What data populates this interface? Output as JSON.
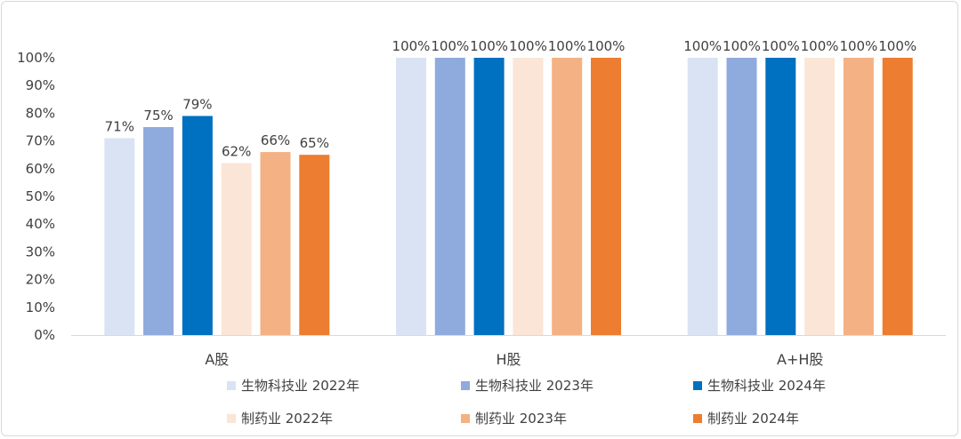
{
  "chart_data": {
    "type": "bar",
    "categories": [
      "A股",
      "H股",
      "A+H股"
    ],
    "series": [
      {
        "name": "生物科技业 2022年",
        "color": "#dae3f3",
        "values": [
          71,
          100,
          100
        ],
        "labels": [
          "71%",
          "100%",
          "100%"
        ]
      },
      {
        "name": "生物科技业 2023年",
        "color": "#8faadc",
        "values": [
          75,
          100,
          100
        ],
        "labels": [
          "75%",
          "100%",
          "100%"
        ]
      },
      {
        "name": "生物科技业 2024年",
        "color": "#0070c0",
        "values": [
          79,
          100,
          100
        ],
        "labels": [
          "79%",
          "100%",
          "100%"
        ]
      },
      {
        "name": "制药业 2022年",
        "color": "#fbe5d6",
        "values": [
          62,
          100,
          100
        ],
        "labels": [
          "62%",
          "100%",
          "100%"
        ]
      },
      {
        "name": "制药业 2023年",
        "color": "#f4b183",
        "values": [
          66,
          100,
          100
        ],
        "labels": [
          "66%",
          "100%",
          "100%"
        ]
      },
      {
        "name": "制药业 2024年",
        "color": "#ed7d31",
        "values": [
          65,
          100,
          100
        ],
        "labels": [
          "65%",
          "100%",
          "100%"
        ]
      }
    ],
    "y_ticks": [
      "0%",
      "10%",
      "20%",
      "30%",
      "40%",
      "50%",
      "60%",
      "70%",
      "80%",
      "90%",
      "100%"
    ],
    "ylim": [
      0,
      100
    ],
    "grid": false,
    "legend_position": "bottom",
    "title": "",
    "xlabel": "",
    "ylabel": ""
  }
}
